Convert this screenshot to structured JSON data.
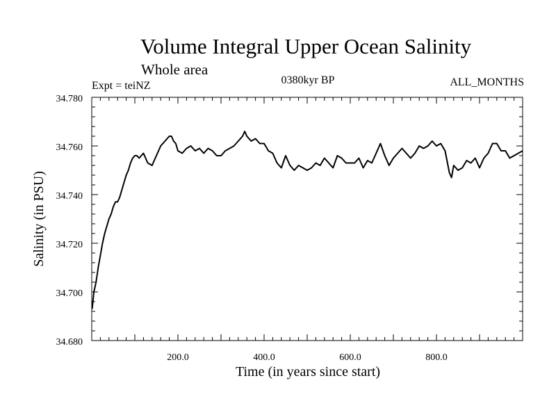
{
  "chart_data": {
    "type": "line",
    "title": "Volume Integral Upper Ocean Salinity",
    "subtitle": "Whole area",
    "experiment": "Expt = teiNZ",
    "period": "0380kyr BP",
    "months": "ALL_MONTHS",
    "xlabel": "Time (in years since start)",
    "ylabel": "Salinity (in PSU)",
    "xlim": [
      0,
      1000
    ],
    "ylim": [
      34.68,
      34.78
    ],
    "xticks": [
      200,
      400,
      600,
      800
    ],
    "xtick_labels": [
      "200.0",
      "400.0",
      "600.0",
      "800.0"
    ],
    "yticks": [
      34.68,
      34.7,
      34.72,
      34.74,
      34.76,
      34.78
    ],
    "ytick_labels": [
      "34.680",
      "34.700",
      "34.720",
      "34.740",
      "34.760",
      "34.780"
    ],
    "grid": false,
    "line_color": "#000000",
    "series": [
      {
        "name": "Salinity",
        "x": [
          1,
          5,
          10,
          15,
          20,
          25,
          30,
          35,
          40,
          45,
          50,
          55,
          60,
          65,
          70,
          75,
          80,
          85,
          90,
          95,
          100,
          105,
          110,
          115,
          120,
          130,
          140,
          150,
          160,
          170,
          180,
          185,
          190,
          195,
          200,
          210,
          220,
          230,
          240,
          250,
          260,
          270,
          280,
          290,
          300,
          310,
          320,
          330,
          340,
          350,
          355,
          360,
          370,
          380,
          390,
          400,
          410,
          420,
          430,
          440,
          450,
          460,
          470,
          480,
          490,
          500,
          510,
          520,
          530,
          540,
          550,
          560,
          570,
          580,
          590,
          600,
          610,
          620,
          630,
          640,
          650,
          660,
          670,
          680,
          690,
          700,
          710,
          720,
          730,
          740,
          750,
          760,
          770,
          780,
          790,
          800,
          810,
          820,
          830,
          835,
          840,
          850,
          860,
          870,
          880,
          890,
          900,
          910,
          920,
          930,
          940,
          950,
          960,
          970,
          980,
          990,
          1000
        ],
        "values": [
          34.693,
          34.7,
          34.704,
          34.71,
          34.715,
          34.72,
          34.724,
          34.727,
          34.73,
          34.732,
          34.735,
          34.737,
          34.737,
          34.739,
          34.742,
          34.745,
          34.748,
          34.75,
          34.753,
          34.755,
          34.756,
          34.756,
          34.755,
          34.756,
          34.757,
          34.753,
          34.752,
          34.756,
          34.76,
          34.762,
          34.764,
          34.764,
          34.762,
          34.761,
          34.758,
          34.757,
          34.759,
          34.76,
          34.758,
          34.759,
          34.757,
          34.759,
          34.758,
          34.756,
          34.756,
          34.758,
          34.759,
          34.76,
          34.762,
          34.764,
          34.766,
          34.764,
          34.762,
          34.763,
          34.761,
          34.761,
          34.758,
          34.757,
          34.753,
          34.751,
          34.756,
          34.752,
          34.75,
          34.752,
          34.751,
          34.75,
          34.751,
          34.753,
          34.752,
          34.755,
          34.753,
          34.751,
          34.756,
          34.755,
          34.753,
          34.753,
          34.753,
          34.755,
          34.751,
          34.754,
          34.753,
          34.757,
          34.761,
          34.756,
          34.752,
          34.755,
          34.757,
          34.759,
          34.757,
          34.755,
          34.757,
          34.76,
          34.759,
          34.76,
          34.762,
          34.76,
          34.761,
          34.758,
          34.749,
          34.747,
          34.752,
          34.75,
          34.751,
          34.754,
          34.753,
          34.755,
          34.751,
          34.755,
          34.757,
          34.761,
          34.761,
          34.758,
          34.758,
          34.755,
          34.756,
          34.757,
          34.758
        ]
      }
    ]
  }
}
